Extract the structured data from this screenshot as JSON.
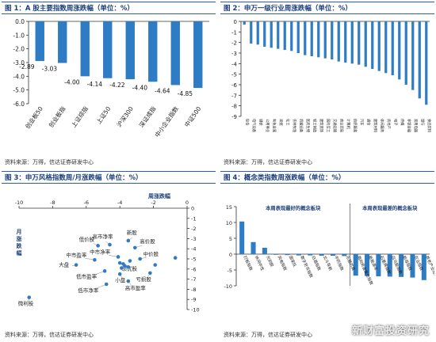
{
  "page": {
    "watermark": "新财富投资研究"
  },
  "colors": {
    "header": "#1c3f7a",
    "bar": "#2e7cc4",
    "scatter": "#2e7cc4",
    "axis": "#333333"
  },
  "chart_data": [
    {
      "id": "p1",
      "type": "bar",
      "title": "图 1：A 股主要指数周涨跌幅（单位：%）",
      "source": "资料来源：万得，信达证券研发中心",
      "categories": [
        "创业板50",
        "创业板指",
        "上证综指",
        "上证50",
        "沪深300",
        "深证成指",
        "中小企业指数",
        "中证500"
      ],
      "values": [
        -2.89,
        -3.03,
        -4.0,
        -4.14,
        -4.22,
        -4.4,
        -4.64,
        -4.85
      ],
      "data_labels": [
        "-2.89",
        "-3.03",
        "-4.00",
        "-4.14",
        "-4.22",
        "-4.40",
        "-4.64",
        "-4.85"
      ],
      "ylim": [
        -6,
        0
      ],
      "yticks": [
        0,
        -1,
        -2,
        -3,
        -4,
        -5,
        -6
      ],
      "ytick_labels": [
        "0.0",
        "-1.0",
        "-2.0",
        "-3.0",
        "-4.0",
        "-5.0",
        "-6.0"
      ],
      "grid": false
    },
    {
      "id": "p2",
      "type": "bar",
      "title": "图 2：申万一级行业周涨跌幅（单位：%）",
      "source": "资料来源：万得，信达证券研发中心",
      "categories": [
        "综合",
        "电气设备",
        "钢铁",
        "公用事业",
        "有色金属",
        "采掘",
        "化工",
        "农林牧渔",
        "机械设备",
        "医药生物",
        "轻工制造",
        "建筑装饰",
        "国防军工",
        "交通运输",
        "商业贸易",
        "计算机",
        "纺织服装",
        "汽车",
        "通信",
        "建筑材料",
        "休闲服务",
        "房地产",
        "电子",
        "传媒",
        "非银金融",
        "家用电器",
        "银行",
        "食品饮料"
      ],
      "values": [
        -0.3,
        -2.1,
        -2.2,
        -2.4,
        -2.5,
        -2.6,
        -2.7,
        -2.8,
        -3.0,
        -3.2,
        -3.3,
        -3.4,
        -3.5,
        -3.6,
        -3.8,
        -3.9,
        -4.0,
        -4.1,
        -4.3,
        -4.5,
        -4.7,
        -4.9,
        -5.1,
        -5.5,
        -6.0,
        -6.5,
        -7.3,
        -7.9
      ],
      "ylim": [
        -9,
        0
      ],
      "yticks": [
        0,
        -1,
        -2,
        -3,
        -4,
        -5,
        -6,
        -7,
        -8,
        -9
      ],
      "ytick_labels": [
        "0",
        "-1",
        "-2",
        "-3",
        "-4",
        "-5",
        "-6",
        "-7",
        "-8",
        "-9"
      ],
      "grid": false
    },
    {
      "id": "p3",
      "type": "scatter",
      "title": "图 3：申万风格指数周/月涨跌幅（单位：%）",
      "source": "资料来源：万得，信达证券研发中心",
      "xlabel": "周涨跌幅",
      "ylabel": "月涨跌幅",
      "xlim": [
        -10,
        0
      ],
      "ylim": [
        -10,
        0
      ],
      "xticks": [
        -10,
        -8,
        -6,
        -4,
        -2,
        0
      ],
      "yticks": [
        0,
        -1,
        -2,
        -3,
        -4,
        -5,
        -6,
        -7,
        -8,
        -9,
        -10
      ],
      "points": [
        {
          "label": "微利股",
          "x": -9.4,
          "y": -8.8
        },
        {
          "label": "大盘",
          "x": -6.6,
          "y": -5.6
        },
        {
          "label": "低价股",
          "x": -5.3,
          "y": -3.7
        },
        {
          "label": "中市盈率",
          "x": -5.5,
          "y": -5.1
        },
        {
          "label": "高市净率",
          "x": -4.6,
          "y": -3.6
        },
        {
          "label": "新股",
          "x": -3.5,
          "y": -3.2
        },
        {
          "label": "高价股",
          "x": -3.1,
          "y": -3.9
        },
        {
          "label": "中市净率",
          "x": -4.1,
          "y": -4.8
        },
        {
          "label": "中价股",
          "x": -2.8,
          "y": -5.0
        },
        {
          "label": "绩优股",
          "x": -3.8,
          "y": -5.5
        },
        {
          "label": "低市盈率",
          "x": -4.9,
          "y": -6.2
        },
        {
          "label": "小盘",
          "x": -4.0,
          "y": -6.5
        },
        {
          "label": "低市净率",
          "x": -4.8,
          "y": -7.5
        },
        {
          "label": "高市盈率",
          "x": -3.5,
          "y": -7.2
        },
        {
          "label": "亏损股",
          "x": -2.2,
          "y": -6.4
        },
        {
          "label": "",
          "x": -3.9,
          "y": -5.9
        },
        {
          "label": "",
          "x": -3.7,
          "y": -5.7
        },
        {
          "label": "",
          "x": -4.0,
          "y": -5.4
        },
        {
          "label": "",
          "x": -3.4,
          "y": -5.2
        },
        {
          "label": "",
          "x": -3.5,
          "y": -5.8
        },
        {
          "label": "",
          "x": -1.9,
          "y": -5.6
        },
        {
          "label": "",
          "x": -0.7,
          "y": -4.9
        }
      ],
      "grid": false
    },
    {
      "id": "p4",
      "type": "bar",
      "title": "图 4：概念类指数周涨跌幅（单位：%）",
      "source": "资料来源：万得，信达证券研发中心",
      "annotations": [
        "本周表现最好的概念板块",
        "本周表现最差的概念板块"
      ],
      "categories": [
        "打板指数",
        "休闲中性",
        "光刻胶",
        "风电指数",
        "国家队",
        "数字货币指数",
        "白酒指数",
        "北斗导航",
        "中药指数",
        "乐器仿真",
        "南向资金重仓指数",
        "新能源车",
        "石墨烯指数",
        "白马股指数",
        "航母指数",
        "农业指数",
        "养老产业指数"
      ],
      "values": [
        10.3,
        3.8,
        2.0,
        -0.2,
        -0.3,
        -0.4,
        -0.4,
        -0.5,
        -0.5,
        -0.6,
        -6.8,
        -6.9,
        -7.0,
        -7.1,
        -7.2,
        -7.4,
        -8.2
      ],
      "ylim": [
        -10,
        15
      ],
      "yticks": [
        15,
        10,
        5,
        0,
        -5,
        -10
      ],
      "ytick_labels": [
        "15",
        "10",
        "5",
        "0",
        "-5",
        "-10"
      ],
      "grid": false
    }
  ]
}
